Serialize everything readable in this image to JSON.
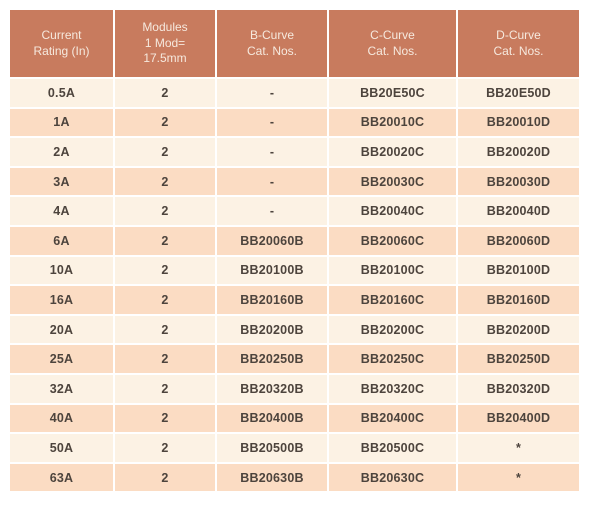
{
  "colors": {
    "header_bg": "#C87B5E",
    "header_text": "#F6E9DE",
    "row_cream": "#FCF2E4",
    "row_peach": "#FBDCC3",
    "cell_text": "#4D443D",
    "separator": "#FFFFFF"
  },
  "table": {
    "columns": [
      {
        "id": "current-rating",
        "label": "Current\nRating (In)"
      },
      {
        "id": "modules",
        "label": "Modules\n1 Mod=\n17.5mm"
      },
      {
        "id": "b-curve",
        "label": "B-Curve\nCat. Nos."
      },
      {
        "id": "c-curve",
        "label": "C-Curve\nCat. Nos."
      },
      {
        "id": "d-curve",
        "label": "D-Curve\nCat. Nos."
      }
    ],
    "rows": [
      [
        "0.5A",
        "2",
        "-",
        "BB20E50C",
        "BB20E50D"
      ],
      [
        "1A",
        "2",
        "-",
        "BB20010C",
        "BB20010D"
      ],
      [
        "2A",
        "2",
        "-",
        "BB20020C",
        "BB20020D"
      ],
      [
        "3A",
        "2",
        "-",
        "BB20030C",
        "BB20030D"
      ],
      [
        "4A",
        "2",
        "-",
        "BB20040C",
        "BB20040D"
      ],
      [
        "6A",
        "2",
        "BB20060B",
        "BB20060C",
        "BB20060D"
      ],
      [
        "10A",
        "2",
        "BB20100B",
        "BB20100C",
        "BB20100D"
      ],
      [
        "16A",
        "2",
        "BB20160B",
        "BB20160C",
        "BB20160D"
      ],
      [
        "20A",
        "2",
        "BB20200B",
        "BB20200C",
        "BB20200D"
      ],
      [
        "25A",
        "2",
        "BB20250B",
        "BB20250C",
        "BB20250D"
      ],
      [
        "32A",
        "2",
        "BB20320B",
        "BB20320C",
        "BB20320D"
      ],
      [
        "40A",
        "2",
        "BB20400B",
        "BB20400C",
        "BB20400D"
      ],
      [
        "50A",
        "2",
        "BB20500B",
        "BB20500C",
        "*"
      ],
      [
        "63A",
        "2",
        "BB20630B",
        "BB20630C",
        "*"
      ]
    ]
  }
}
